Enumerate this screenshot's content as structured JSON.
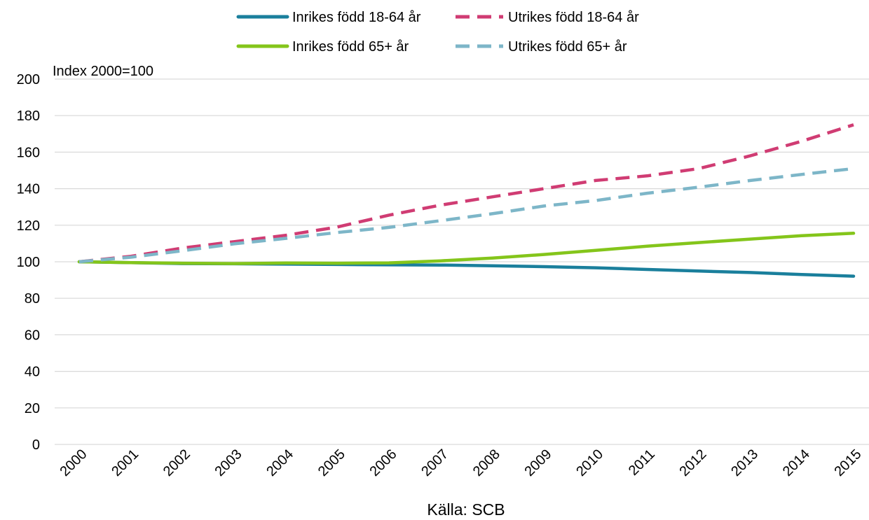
{
  "chart_data": {
    "type": "line",
    "ylabel": "Index 2000=100",
    "source": "Källa: SCB",
    "ylim": [
      0,
      200
    ],
    "yticks": [
      0,
      20,
      40,
      60,
      80,
      100,
      120,
      140,
      160,
      180,
      200
    ],
    "grid": true,
    "legend_position": "top",
    "x": [
      "2000",
      "2001",
      "2002",
      "2003",
      "2004",
      "2005",
      "2006",
      "2007",
      "2008",
      "2009",
      "2010",
      "2011",
      "2012",
      "2013",
      "2014",
      "2015"
    ],
    "series": [
      {
        "name": "Inrikes född 18-64 år",
        "color": "#1a7f9c",
        "dash": false,
        "values": [
          100,
          99.5,
          99,
          98.9,
          98.7,
          98.5,
          98.3,
          98.2,
          97.8,
          97.3,
          96.7,
          95.8,
          94.9,
          94.1,
          93.0,
          92.1
        ]
      },
      {
        "name": "Utrikes född 18-64 år",
        "color": "#d03c73",
        "dash": true,
        "values": [
          100,
          103,
          107.5,
          111,
          114.5,
          119,
          125.5,
          131,
          135.5,
          140,
          144.5,
          147,
          151,
          158,
          166,
          175
        ]
      },
      {
        "name": "Inrikes född 65+ år",
        "color": "#84c51b",
        "dash": false,
        "values": [
          100,
          99.5,
          99.2,
          99.0,
          99.3,
          99.2,
          99.4,
          100.5,
          102,
          104,
          106.2,
          108.5,
          110.5,
          112.4,
          114.3,
          115.6
        ]
      },
      {
        "name": "Utrikes född 65+ år",
        "color": "#7db6c8",
        "dash": true,
        "values": [
          100,
          102.5,
          106,
          109.8,
          112.8,
          116,
          118.8,
          122.5,
          126.3,
          130.5,
          133.5,
          137.5,
          140.8,
          144.5,
          147.8,
          151
        ]
      }
    ]
  }
}
